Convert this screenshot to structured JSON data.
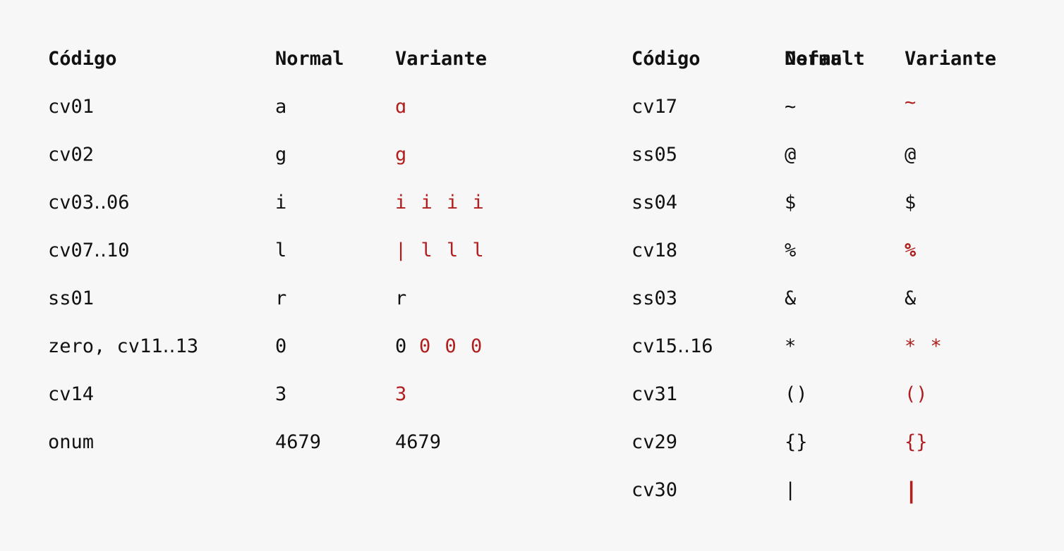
{
  "left_table": {
    "headers": {
      "code": "Código",
      "normal": "Normal",
      "variant": "Variante"
    },
    "rows": [
      {
        "code": "cv01",
        "normal": "a",
        "variant": "ɑ",
        "variant_color": "#b01e1e"
      },
      {
        "code": "cv02",
        "normal": "g",
        "variant": "g",
        "variant_color": "#b01e1e"
      },
      {
        "code": "cv03‥06",
        "normal": "i",
        "variant": "i i i i",
        "variant_color": "#b01e1e"
      },
      {
        "code": "cv07‥10",
        "normal": "l",
        "variant": "| l l l",
        "variant_color": "#b01e1e"
      },
      {
        "code": "ss01",
        "normal": "r",
        "variant": "r",
        "variant_color": "#111111"
      },
      {
        "code": "zero, cv11‥13",
        "normal": "0",
        "variant_first": "0",
        "variant_rest": "0 0 0",
        "variant_color": "#b01e1e"
      },
      {
        "code": "cv14",
        "normal": "3",
        "variant": "3",
        "variant_color": "#b01e1e"
      },
      {
        "code": "onum",
        "normal": "4679",
        "variant": "4679",
        "variant_color": "#111111"
      }
    ]
  },
  "right_table": {
    "headers": {
      "code": "Código",
      "normal_a": "Default",
      "normal_b": "Normal",
      "variant": "Variante"
    },
    "rows": [
      {
        "code": "cv17",
        "normal": "~",
        "variant": "~",
        "variant_color": "#b01e1e"
      },
      {
        "code": "ss05",
        "normal": "@",
        "variant": "@",
        "variant_color": "#111111"
      },
      {
        "code": "ss04",
        "normal": "$",
        "variant": "$",
        "variant_color": "#111111"
      },
      {
        "code": "cv18",
        "normal": "%",
        "variant": "%",
        "variant_color": "#b01e1e"
      },
      {
        "code": "ss03",
        "normal": "&",
        "variant": "&",
        "variant_color": "#111111"
      },
      {
        "code": "cv15‥16",
        "normal": "*",
        "variant": "* *",
        "variant_color": "#b01e1e"
      },
      {
        "code": "cv31",
        "normal": "()",
        "variant": "()",
        "variant_color": "#b01e1e"
      },
      {
        "code": "cv29",
        "normal": "{}",
        "variant": "{}",
        "variant_color": "#b01e1e"
      },
      {
        "code": "cv30",
        "normal": "|",
        "variant": "|",
        "variant_color": "#b01e1e"
      }
    ]
  }
}
